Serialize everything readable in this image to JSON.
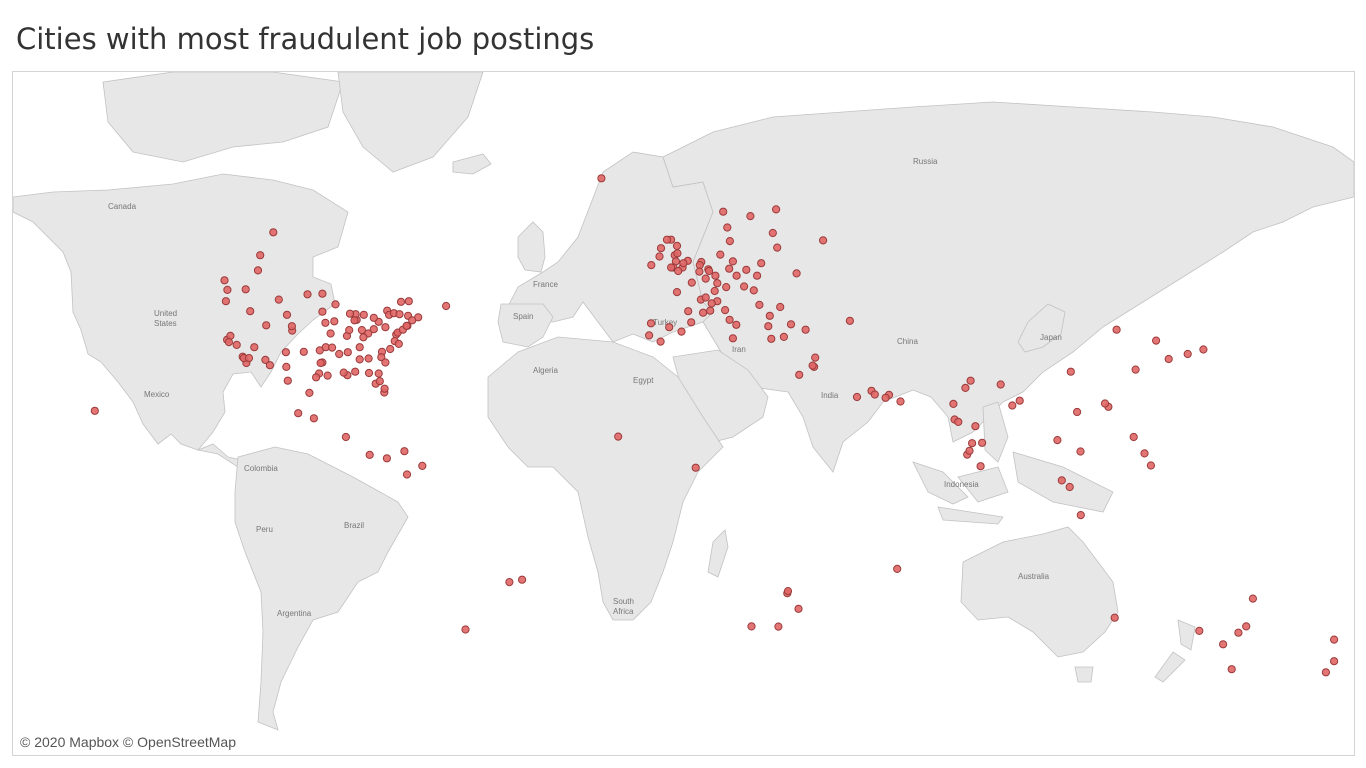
{
  "title": "Cities with most fraudulent job postings",
  "attribution": "© 2020 Mapbox © OpenStreetMap",
  "colors": {
    "dot_fill": "#e06666",
    "dot_stroke": "#9b3a3a",
    "land": "#e7e7e7",
    "border": "#c2c2c2"
  },
  "map_labels": [
    {
      "id": "russia",
      "text": "Russia"
    },
    {
      "id": "canada",
      "text": "Canada"
    },
    {
      "id": "united-states-1",
      "text": "United"
    },
    {
      "id": "united-states-2",
      "text": "States"
    },
    {
      "id": "mexico",
      "text": "Mexico"
    },
    {
      "id": "colombia",
      "text": "Colombia"
    },
    {
      "id": "peru",
      "text": "Peru"
    },
    {
      "id": "brazil",
      "text": "Brazil"
    },
    {
      "id": "argentina",
      "text": "Argentina"
    },
    {
      "id": "france",
      "text": "France"
    },
    {
      "id": "spain",
      "text": "Spain"
    },
    {
      "id": "turkey",
      "text": "Turkey"
    },
    {
      "id": "algeria",
      "text": "Algeria"
    },
    {
      "id": "egypt",
      "text": "Egypt"
    },
    {
      "id": "iran",
      "text": "Iran"
    },
    {
      "id": "india",
      "text": "India"
    },
    {
      "id": "china",
      "text": "China"
    },
    {
      "id": "japan",
      "text": "Japan"
    },
    {
      "id": "indonesia",
      "text": "Indonesia"
    },
    {
      "id": "australia",
      "text": "Australia"
    },
    {
      "id": "south-africa-1",
      "text": "South"
    },
    {
      "id": "south-africa-2",
      "text": "Africa"
    }
  ],
  "points": [
    {
      "lon": -122.4,
      "lat": 37.8
    },
    {
      "lon": -122.3,
      "lat": 47.6
    },
    {
      "lon": -123.1,
      "lat": 49.3
    },
    {
      "lon": -122.7,
      "lat": 45.5
    },
    {
      "lon": -121.5,
      "lat": 38.6
    },
    {
      "lon": -121.9,
      "lat": 37.3
    },
    {
      "lon": -118.2,
      "lat": 34.1
    },
    {
      "lon": -117.2,
      "lat": 32.7
    },
    {
      "lon": -117.9,
      "lat": 33.8
    },
    {
      "lon": -119.8,
      "lat": 36.7
    },
    {
      "lon": -115.1,
      "lat": 36.2
    },
    {
      "lon": -112.1,
      "lat": 33.4
    },
    {
      "lon": -110.9,
      "lat": 32.2
    },
    {
      "lon": -111.9,
      "lat": 40.8
    },
    {
      "lon": -116.2,
      "lat": 43.6
    },
    {
      "lon": -117.4,
      "lat": 47.7
    },
    {
      "lon": -106.6,
      "lat": 35.1
    },
    {
      "lon": -104.9,
      "lat": 39.7
    },
    {
      "lon": -105.0,
      "lat": 40.6
    },
    {
      "lon": -108.5,
      "lat": 45.8
    },
    {
      "lon": -106.3,
      "lat": 42.9
    },
    {
      "lon": -114.1,
      "lat": 51.0
    },
    {
      "lon": -113.5,
      "lat": 53.5
    },
    {
      "lon": -106.5,
      "lat": 31.8
    },
    {
      "lon": -97.7,
      "lat": 30.3
    },
    {
      "lon": -96.8,
      "lat": 32.8
    },
    {
      "lon": -95.4,
      "lat": 29.8
    },
    {
      "lon": -98.5,
      "lat": 29.4
    },
    {
      "lon": -97.3,
      "lat": 32.7
    },
    {
      "lon": -101.8,
      "lat": 35.2
    },
    {
      "lon": -97.5,
      "lat": 35.5
    },
    {
      "lon": -95.9,
      "lat": 36.2
    },
    {
      "lon": -94.6,
      "lat": 39.1
    },
    {
      "lon": -90.2,
      "lat": 38.6
    },
    {
      "lon": -96.0,
      "lat": 41.3
    },
    {
      "lon": -93.6,
      "lat": 41.6
    },
    {
      "lon": -93.3,
      "lat": 44.9
    },
    {
      "lon": -96.8,
      "lat": 43.5
    },
    {
      "lon": -96.8,
      "lat": 46.9
    },
    {
      "lon": -87.6,
      "lat": 41.9
    },
    {
      "lon": -87.9,
      "lat": 43.0
    },
    {
      "lon": -89.4,
      "lat": 43.1
    },
    {
      "lon": -86.2,
      "lat": 39.8
    },
    {
      "lon": -84.5,
      "lat": 39.1
    },
    {
      "lon": -83.0,
      "lat": 40.0
    },
    {
      "lon": -81.7,
      "lat": 41.5
    },
    {
      "lon": -83.0,
      "lat": 42.3
    },
    {
      "lon": -85.7,
      "lat": 42.9
    },
    {
      "lon": -84.4,
      "lat": 33.7
    },
    {
      "lon": -80.8,
      "lat": 35.2
    },
    {
      "lon": -78.6,
      "lat": 35.8
    },
    {
      "lon": -81.0,
      "lat": 34.0
    },
    {
      "lon": -79.9,
      "lat": 32.8
    },
    {
      "lon": -86.8,
      "lat": 36.2
    },
    {
      "lon": -90.0,
      "lat": 35.1
    },
    {
      "lon": -85.8,
      "lat": 38.3
    },
    {
      "lon": -86.8,
      "lat": 33.5
    },
    {
      "lon": -90.1,
      "lat": 29.9
    },
    {
      "lon": -91.1,
      "lat": 30.5
    },
    {
      "lon": -88.0,
      "lat": 30.7
    },
    {
      "lon": -82.5,
      "lat": 27.9
    },
    {
      "lon": -81.4,
      "lat": 28.5
    },
    {
      "lon": -80.2,
      "lat": 25.8
    },
    {
      "lon": -81.7,
      "lat": 30.3
    },
    {
      "lon": -80.1,
      "lat": 26.7
    },
    {
      "lon": -77.0,
      "lat": 38.9
    },
    {
      "lon": -76.6,
      "lat": 39.3
    },
    {
      "lon": -75.2,
      "lat": 39.9
    },
    {
      "lon": -74.0,
      "lat": 40.7
    },
    {
      "lon": -74.2,
      "lat": 40.7
    },
    {
      "lon": -73.8,
      "lat": 42.7
    },
    {
      "lon": -71.1,
      "lat": 42.4
    },
    {
      "lon": -72.7,
      "lat": 41.8
    },
    {
      "lon": -79.9,
      "lat": 40.4
    },
    {
      "lon": -77.4,
      "lat": 37.5
    },
    {
      "lon": -76.3,
      "lat": 36.9
    },
    {
      "lon": -79.4,
      "lat": 43.7
    },
    {
      "lon": -75.7,
      "lat": 45.4
    },
    {
      "lon": -73.6,
      "lat": 45.5
    },
    {
      "lon": -63.6,
      "lat": 44.6
    },
    {
      "lon": -78.9,
      "lat": 42.9
    },
    {
      "lon": -77.6,
      "lat": 43.2
    },
    {
      "lon": -76.1,
      "lat": 43.0
    },
    {
      "lon": -84.3,
      "lat": 30.4
    },
    {
      "lon": -92.3,
      "lat": 34.7
    },
    {
      "lon": -94.2,
      "lat": 36.1
    },
    {
      "lon": -88.2,
      "lat": 41.8
    },
    {
      "lon": -89.6,
      "lat": 39.8
    },
    {
      "lon": -100.8,
      "lat": 46.8
    },
    {
      "lon": -116.5,
      "lat": 33.8
    },
    {
      "lon": -99.1,
      "lat": 19.4
    },
    {
      "lon": -103.3,
      "lat": 20.7
    },
    {
      "lon": -100.3,
      "lat": 25.7
    },
    {
      "lon": -106.1,
      "lat": 28.6
    },
    {
      "lon": -110.0,
      "lat": 57.0
    },
    {
      "lon": -90.5,
      "lat": 14.6
    },
    {
      "lon": -84.1,
      "lat": 9.9
    },
    {
      "lon": -79.5,
      "lat": 9.0
    },
    {
      "lon": -74.8,
      "lat": 10.9
    },
    {
      "lon": -74.1,
      "lat": 4.7
    },
    {
      "lon": -70.0,
      "lat": 7.0
    },
    {
      "lon": -43.2,
      "lat": -22.9
    },
    {
      "lon": -46.6,
      "lat": -23.5
    },
    {
      "lon": -58.4,
      "lat": -34.6
    },
    {
      "lon": -21.9,
      "lat": 64.1
    },
    {
      "lon": -0.1,
      "lat": 51.5
    },
    {
      "lon": -2.2,
      "lat": 53.5
    },
    {
      "lon": -1.9,
      "lat": 52.5
    },
    {
      "lon": -1.5,
      "lat": 53.8
    },
    {
      "lon": -3.2,
      "lat": 55.9
    },
    {
      "lon": -4.3,
      "lat": 55.9
    },
    {
      "lon": -6.3,
      "lat": 53.3
    },
    {
      "lon": -8.5,
      "lat": 51.9
    },
    {
      "lon": -5.9,
      "lat": 54.6
    },
    {
      "lon": -2.6,
      "lat": 51.5
    },
    {
      "lon": -3.2,
      "lat": 51.5
    },
    {
      "lon": -1.3,
      "lat": 50.9
    },
    {
      "lon": 1.3,
      "lat": 52.6
    },
    {
      "lon": 0.1,
      "lat": 52.2
    },
    {
      "lon": -1.6,
      "lat": 54.97
    },
    {
      "lon": 2.35,
      "lat": 48.9
    },
    {
      "lon": 4.8,
      "lat": 45.8
    },
    {
      "lon": 5.4,
      "lat": 43.3
    },
    {
      "lon": 7.3,
      "lat": 43.7
    },
    {
      "lon": 1.4,
      "lat": 43.6
    },
    {
      "lon": -1.6,
      "lat": 47.2
    },
    {
      "lon": 4.9,
      "lat": 52.4
    },
    {
      "lon": 4.5,
      "lat": 51.9
    },
    {
      "lon": 4.4,
      "lat": 50.8
    },
    {
      "lon": 6.1,
      "lat": 49.6
    },
    {
      "lon": 6.8,
      "lat": 51.2
    },
    {
      "lon": 7.0,
      "lat": 50.9
    },
    {
      "lon": 8.7,
      "lat": 50.1
    },
    {
      "lon": 9.2,
      "lat": 48.8
    },
    {
      "lon": 11.6,
      "lat": 48.1
    },
    {
      "lon": 13.4,
      "lat": 52.5
    },
    {
      "lon": 10.0,
      "lat": 53.6
    },
    {
      "lon": 12.4,
      "lat": 51.3
    },
    {
      "lon": 8.5,
      "lat": 47.4
    },
    {
      "lon": 6.1,
      "lat": 46.2
    },
    {
      "lon": 16.4,
      "lat": 48.2
    },
    {
      "lon": 14.4,
      "lat": 50.1
    },
    {
      "lon": 19.0,
      "lat": 47.5
    },
    {
      "lon": 21.0,
      "lat": 52.2
    },
    {
      "lon": 19.9,
      "lat": 50.1
    },
    {
      "lon": 17.0,
      "lat": 51.1
    },
    {
      "lon": 12.6,
      "lat": 55.7
    },
    {
      "lon": 18.1,
      "lat": 59.3
    },
    {
      "lon": 10.8,
      "lat": 59.9
    },
    {
      "lon": 25.0,
      "lat": 60.2
    },
    {
      "lon": 24.1,
      "lat": 56.9
    },
    {
      "lon": 25.3,
      "lat": 54.7
    },
    {
      "lon": 11.9,
      "lat": 57.7
    },
    {
      "lon": 9.2,
      "lat": 45.5
    },
    {
      "lon": 12.5,
      "lat": 41.9
    },
    {
      "lon": 14.3,
      "lat": 40.9
    },
    {
      "lon": 11.3,
      "lat": 43.8
    },
    {
      "lon": 7.7,
      "lat": 45.1
    },
    {
      "lon": 13.4,
      "lat": 38.1
    },
    {
      "lon": -3.7,
      "lat": 40.4
    },
    {
      "lon": 2.2,
      "lat": 41.4
    },
    {
      "lon": -9.1,
      "lat": 38.7
    },
    {
      "lon": -8.6,
      "lat": 41.2
    },
    {
      "lon": -0.4,
      "lat": 39.5
    },
    {
      "lon": -6.0,
      "lat": 37.4
    },
    {
      "lon": 23.7,
      "lat": 38.0
    },
    {
      "lon": 22.9,
      "lat": 40.6
    },
    {
      "lon": 26.1,
      "lat": 44.4
    },
    {
      "lon": 23.3,
      "lat": 42.7
    },
    {
      "lon": 20.5,
      "lat": 44.8
    },
    {
      "lon": 30.5,
      "lat": 50.5
    },
    {
      "lon": 37.6,
      "lat": 55.8
    },
    {
      "lon": 28.98,
      "lat": 41.0
    },
    {
      "lon": 32.9,
      "lat": 39.9
    },
    {
      "lon": 27.1,
      "lat": 38.4
    },
    {
      "lon": 35.2,
      "lat": 31.8
    },
    {
      "lon": 34.8,
      "lat": 32.1
    },
    {
      "lon": 35.5,
      "lat": 33.9
    },
    {
      "lon": 31.2,
      "lat": 30.0
    },
    {
      "lon": 44.8,
      "lat": 41.7
    },
    {
      "lon": 46.7,
      "lat": 24.7
    },
    {
      "lon": 50.6,
      "lat": 26.2
    },
    {
      "lon": 51.5,
      "lat": 25.3
    },
    {
      "lon": 55.3,
      "lat": 25.2
    },
    {
      "lon": 54.4,
      "lat": 24.5
    },
    {
      "lon": 58.4,
      "lat": 23.6
    },
    {
      "lon": 72.9,
      "lat": 19.1
    },
    {
      "lon": 73.9,
      "lat": 18.5
    },
    {
      "lon": 77.2,
      "lat": 28.6
    },
    {
      "lon": 77.6,
      "lat": 13.0
    },
    {
      "lon": 80.3,
      "lat": 13.1
    },
    {
      "lon": 78.5,
      "lat": 17.4
    },
    {
      "lon": 88.4,
      "lat": 22.6
    },
    {
      "lon": 72.6,
      "lat": 23.0
    },
    {
      "lon": 75.8,
      "lat": 26.9
    },
    {
      "lon": 76.3,
      "lat": 10.0
    },
    {
      "lon": 76.9,
      "lat": 11.0
    },
    {
      "lon": 79.9,
      "lat": 6.9
    },
    {
      "lon": 85.3,
      "lat": 27.7
    },
    {
      "lon": 90.4,
      "lat": 23.8
    },
    {
      "lon": 100.5,
      "lat": 13.8
    },
    {
      "lon": 106.7,
      "lat": 10.8
    },
    {
      "lon": 105.8,
      "lat": 21.0
    },
    {
      "lon": 103.8,
      "lat": 1.35
    },
    {
      "lon": 101.7,
      "lat": 3.1
    },
    {
      "lon": 106.8,
      "lat": -6.2
    },
    {
      "lon": 121.0,
      "lat": 14.6
    },
    {
      "lon": 123.9,
      "lat": 10.3
    },
    {
      "lon": 125.6,
      "lat": 7.1
    },
    {
      "lon": 114.2,
      "lat": 22.3
    },
    {
      "lon": 113.3,
      "lat": 23.1
    },
    {
      "lon": 121.5,
      "lat": 31.2
    },
    {
      "lon": 116.4,
      "lat": 39.9
    },
    {
      "lon": 127.0,
      "lat": 37.6
    },
    {
      "lon": 139.7,
      "lat": 35.7
    },
    {
      "lon": 135.5,
      "lat": 34.7
    },
    {
      "lon": 130.4,
      "lat": 33.6
    },
    {
      "lon": 104.1,
      "lat": 30.7
    },
    {
      "lon": 151.2,
      "lat": -33.9
    },
    {
      "lon": 145.0,
      "lat": -37.8
    },
    {
      "lon": 153.0,
      "lat": -27.5
    },
    {
      "lon": 138.6,
      "lat": -34.9
    },
    {
      "lon": 115.9,
      "lat": -31.95
    },
    {
      "lon": 149.1,
      "lat": -35.3
    },
    {
      "lon": 147.3,
      "lat": -42.9
    },
    {
      "lon": 174.8,
      "lat": -36.8
    },
    {
      "lon": 174.8,
      "lat": -41.3
    },
    {
      "lon": 172.6,
      "lat": -43.5
    },
    {
      "lon": 18.4,
      "lat": -33.9
    },
    {
      "lon": 28.0,
      "lat": -26.2
    },
    {
      "lon": 31.0,
      "lat": -29.9
    },
    {
      "lon": 25.6,
      "lat": -33.96
    },
    {
      "lon": 28.2,
      "lat": -25.7
    },
    {
      "lon": 57.5,
      "lat": -20.2
    },
    {
      "lon": -17.4,
      "lat": 14.7
    },
    {
      "lon": 3.4,
      "lat": 6.5
    },
    {
      "lon": -157.9,
      "lat": 21.3
    }
  ]
}
